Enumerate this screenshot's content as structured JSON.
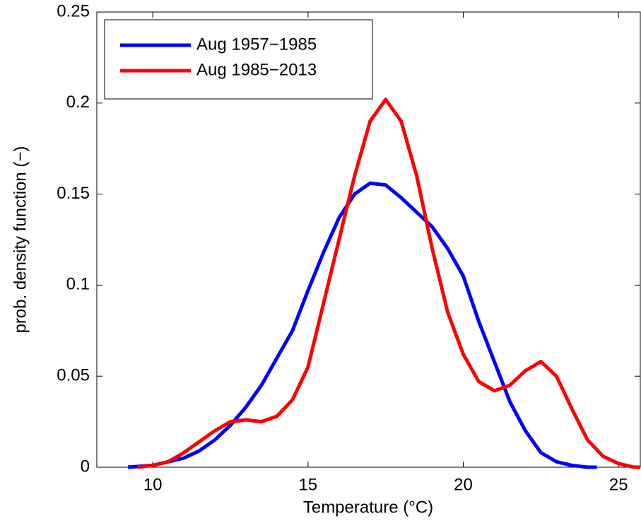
{
  "chart_data": {
    "type": "line",
    "x_label": "Temperature (°C)",
    "y_label": "prob. density function (−)",
    "xlim": [
      8.2,
      25.7
    ],
    "ylim": [
      0,
      0.25
    ],
    "xticks": [
      10,
      15,
      20,
      25
    ],
    "yticks": [
      0,
      0.05,
      0.1,
      0.15,
      0.2,
      0.25
    ],
    "legend": "top-left",
    "series": [
      {
        "name": "Aug 1957−1985",
        "color": "#0000ff",
        "x": [
          9.2,
          10,
          10.5,
          11,
          11.5,
          12,
          12.5,
          13,
          13.5,
          14,
          14.5,
          15,
          15.5,
          16,
          16.5,
          17,
          17.5,
          18,
          18.5,
          19,
          19.5,
          20,
          20.5,
          21,
          21.5,
          22,
          22.5,
          23,
          23.5,
          24,
          24.3
        ],
        "values": [
          0,
          0.001,
          0.003,
          0.005,
          0.009,
          0.015,
          0.023,
          0.033,
          0.045,
          0.06,
          0.075,
          0.097,
          0.118,
          0.137,
          0.15,
          0.156,
          0.155,
          0.148,
          0.14,
          0.132,
          0.12,
          0.105,
          0.08,
          0.058,
          0.036,
          0.02,
          0.008,
          0.003,
          0.001,
          0,
          0
        ]
      },
      {
        "name": "Aug 1985−2013",
        "color": "#ff0000",
        "x": [
          9.5,
          10,
          10.5,
          11,
          11.5,
          12,
          12.5,
          13,
          13.5,
          14,
          14.5,
          15,
          15.5,
          16,
          16.5,
          17,
          17.5,
          18,
          18.5,
          19,
          19.5,
          20,
          20.5,
          21,
          21.5,
          22,
          22.5,
          23,
          23.5,
          24,
          24.5,
          25,
          25.5,
          25.7
        ],
        "values": [
          0,
          0.001,
          0.003,
          0.008,
          0.014,
          0.02,
          0.025,
          0.026,
          0.025,
          0.028,
          0.037,
          0.055,
          0.09,
          0.125,
          0.16,
          0.19,
          0.202,
          0.19,
          0.16,
          0.12,
          0.085,
          0.062,
          0.047,
          0.042,
          0.045,
          0.053,
          0.058,
          0.05,
          0.032,
          0.015,
          0.006,
          0.002,
          0,
          0
        ]
      }
    ]
  }
}
